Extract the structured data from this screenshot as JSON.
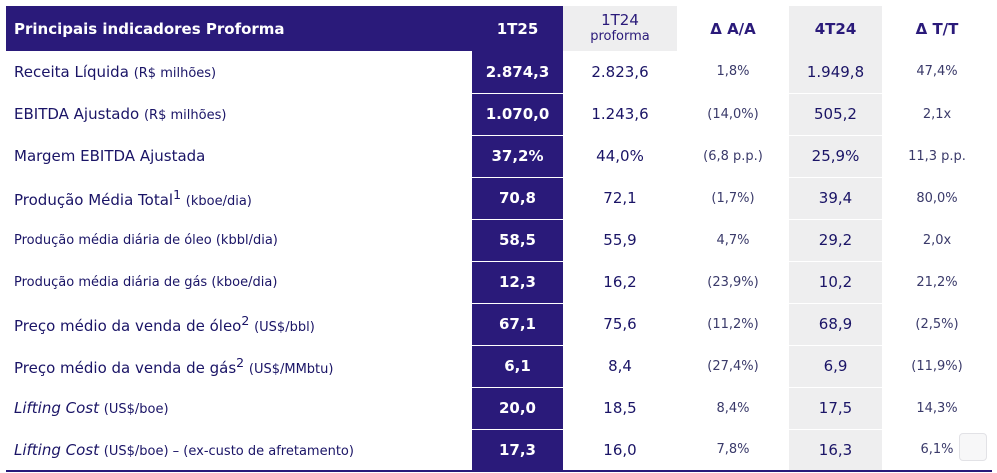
{
  "header": {
    "title": "Principais indicadores Proforma",
    "col1": "1T25",
    "col2": "1T24",
    "col2_sub": "proforma",
    "col3": "Δ A/A",
    "col4": "4T24",
    "col5": "Δ T/T"
  },
  "rows": [
    {
      "main": "Receita Líquida",
      "unit": "(R$ milhões)",
      "v1": "2.874,3",
      "v2": "2.823,6",
      "v3": "1,8%",
      "v4": "1.949,8",
      "v5": "47,4%"
    },
    {
      "main": "EBITDA Ajustado",
      "unit": "(R$ milhões)",
      "v1": "1.070,0",
      "v2": "1.243,6",
      "v3": "(14,0%)",
      "v4": "505,2",
      "v5": "2,1x"
    },
    {
      "main": "Margem EBITDA Ajustada",
      "v1": "37,2%",
      "v2": "44,0%",
      "v3": "(6,8 p.p.)",
      "v4": "25,9%",
      "v5": "11,3 p.p."
    },
    {
      "main": "Produção Média Total",
      "sup": "1",
      "unit": "(kboe/dia)",
      "v1": "70,8",
      "v2": "72,1",
      "v3": "(1,7%)",
      "v4": "39,4",
      "v5": "80,0%"
    },
    {
      "main": "Produção média diária de óleo (kbbl/dia)",
      "v1": "58,5",
      "v2": "55,9",
      "v3": "4,7%",
      "v4": "29,2",
      "v5": "2,0x"
    },
    {
      "main": "Produção média diária de gás (kboe/dia)",
      "v1": "12,3",
      "v2": "16,2",
      "v3": "(23,9%)",
      "v4": "10,2",
      "v5": "21,2%"
    },
    {
      "main": "Preço médio da venda de óleo",
      "sup": "2",
      "unit": "(US$/bbl)",
      "v1": "67,1",
      "v2": "75,6",
      "v3": "(11,2%)",
      "v4": "68,9",
      "v5": "(2,5%)"
    },
    {
      "main": "Preço médio da venda de gás",
      "sup": "2",
      "unit": "(US$/MMbtu)",
      "v1": "6,1",
      "v2": "8,4",
      "v3": "(27,4%)",
      "v4": "6,9",
      "v5": "(11,9%)"
    },
    {
      "main": "Lifting Cost",
      "unit": "(US$/boe)",
      "v1": "20,0",
      "v2": "18,5",
      "v3": "8,4%",
      "v4": "17,5",
      "v5": "14,3%"
    },
    {
      "main": "Lifting Cost",
      "unit": "(US$/boe) – (ex-custo de afretamento)",
      "v1": "17,3",
      "v2": "16,0",
      "v3": "7,8%",
      "v4": "16,3",
      "v5": "6,1%"
    }
  ]
}
